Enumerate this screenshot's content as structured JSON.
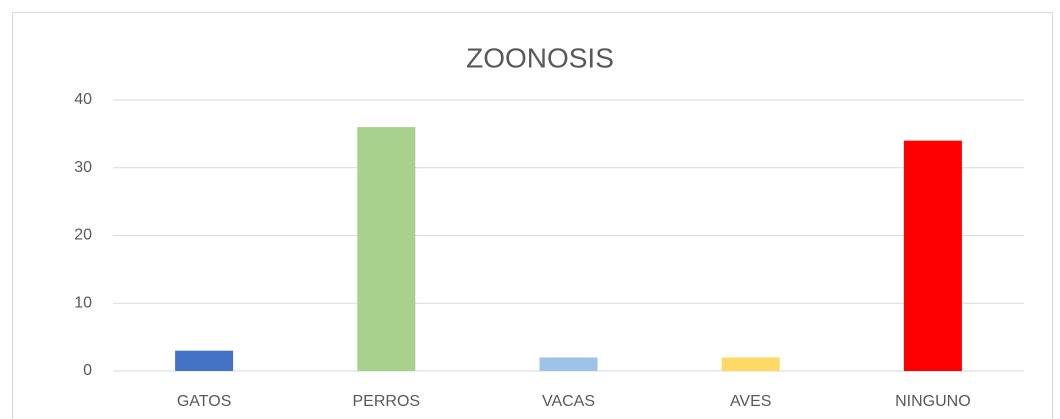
{
  "chart_data": {
    "type": "bar",
    "title": "ZOONOSIS",
    "categories": [
      "GATOS",
      "PERROS",
      "VACAS",
      "AVES",
      "NINGUNO"
    ],
    "values": [
      3,
      36,
      2,
      2,
      34
    ],
    "colors": [
      "#4472c4",
      "#a9d18e",
      "#9dc3e6",
      "#ffd966",
      "#ff0000"
    ],
    "ylim": [
      0,
      40
    ],
    "yticks": [
      0,
      10,
      20,
      30,
      40
    ],
    "grid": true
  }
}
